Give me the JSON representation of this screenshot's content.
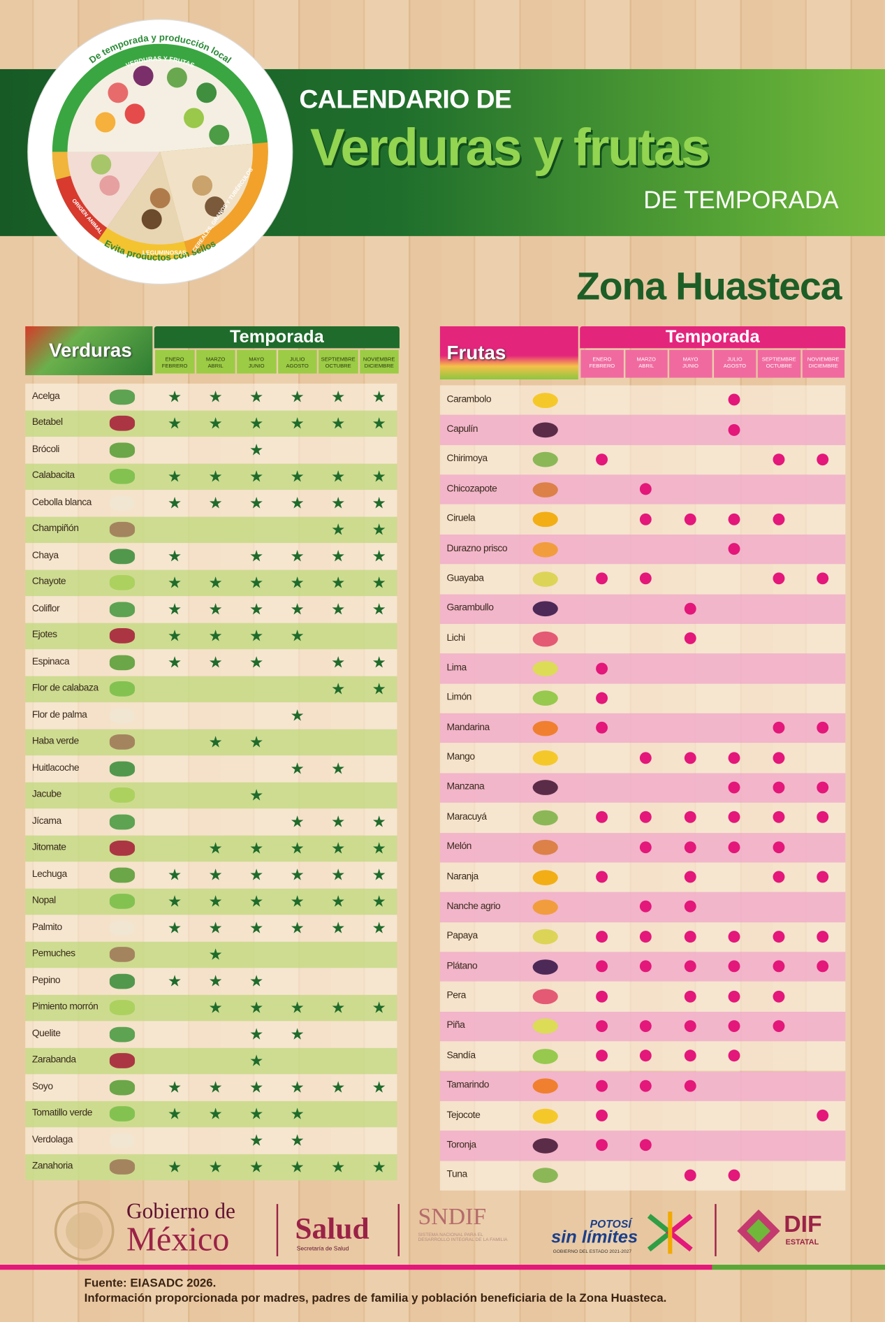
{
  "header": {
    "line1": "CALENDARIO DE",
    "line2": "Verduras y frutas",
    "line3": "DE TEMPORADA"
  },
  "plate": {
    "arc_top": "De temporada y producción local",
    "group1": "VERDURAS Y FRUTAS",
    "group2": "CEREALES, GRANOS Y TUBÉRCULOS",
    "group3": "LEGUMINOSAS",
    "group4": "ORIGEN ANIMAL",
    "arc_bottom": "Evita productos con sellos"
  },
  "zone": "Zona Huasteca",
  "verduras": {
    "title": "Verduras",
    "season_title": "Temporada",
    "columns": [
      [
        "ENERO",
        "FEBRERO"
      ],
      [
        "MARZO",
        "ABRIL"
      ],
      [
        "MAYO",
        "JUNIO"
      ],
      [
        "JULIO",
        "AGOSTO"
      ],
      [
        "SEPTIEMBRE",
        "OCTUBRE"
      ],
      [
        "NOVIEMBRE",
        "DICIEMBRE"
      ]
    ],
    "rows": [
      {
        "name": "Acelga",
        "season": [
          true,
          true,
          true,
          true,
          true,
          true
        ]
      },
      {
        "name": "Betabel",
        "season": [
          true,
          true,
          true,
          true,
          true,
          true
        ]
      },
      {
        "name": "Brócoli",
        "season": [
          false,
          false,
          true,
          false,
          false,
          false
        ]
      },
      {
        "name": "Calabacita",
        "season": [
          true,
          true,
          true,
          true,
          true,
          true
        ]
      },
      {
        "name": "Cebolla blanca",
        "season": [
          true,
          true,
          true,
          true,
          true,
          true
        ]
      },
      {
        "name": "Champiñón",
        "season": [
          false,
          false,
          false,
          false,
          true,
          true
        ]
      },
      {
        "name": "Chaya",
        "season": [
          true,
          false,
          true,
          true,
          true,
          true
        ]
      },
      {
        "name": "Chayote",
        "season": [
          true,
          true,
          true,
          true,
          true,
          true
        ]
      },
      {
        "name": "Coliflor",
        "season": [
          true,
          true,
          true,
          true,
          true,
          true
        ]
      },
      {
        "name": "Ejotes",
        "season": [
          true,
          true,
          true,
          true,
          false,
          false
        ]
      },
      {
        "name": "Espinaca",
        "season": [
          true,
          true,
          true,
          false,
          true,
          true
        ]
      },
      {
        "name": "Flor de calabaza",
        "season": [
          false,
          false,
          false,
          false,
          true,
          true
        ]
      },
      {
        "name": "Flor de palma",
        "season": [
          false,
          false,
          false,
          true,
          false,
          false
        ]
      },
      {
        "name": "Haba verde",
        "season": [
          false,
          true,
          true,
          false,
          false,
          false
        ]
      },
      {
        "name": "Huitlacoche",
        "season": [
          false,
          false,
          false,
          true,
          true,
          false
        ]
      },
      {
        "name": "Jacube",
        "season": [
          false,
          false,
          true,
          false,
          false,
          false
        ]
      },
      {
        "name": "Jícama",
        "season": [
          false,
          false,
          false,
          true,
          true,
          true
        ]
      },
      {
        "name": "Jitomate",
        "season": [
          false,
          true,
          true,
          true,
          true,
          true
        ]
      },
      {
        "name": "Lechuga",
        "season": [
          true,
          true,
          true,
          true,
          true,
          true
        ]
      },
      {
        "name": "Nopal",
        "season": [
          true,
          true,
          true,
          true,
          true,
          true
        ]
      },
      {
        "name": "Palmito",
        "season": [
          true,
          true,
          true,
          true,
          true,
          true
        ]
      },
      {
        "name": "Pemuches",
        "season": [
          false,
          true,
          false,
          false,
          false,
          false
        ]
      },
      {
        "name": "Pepino",
        "season": [
          true,
          true,
          true,
          false,
          false,
          false
        ]
      },
      {
        "name": "Pimiento morrón",
        "season": [
          false,
          true,
          true,
          true,
          true,
          true
        ]
      },
      {
        "name": "Quelite",
        "season": [
          false,
          false,
          true,
          true,
          false,
          false
        ]
      },
      {
        "name": "Zarabanda",
        "season": [
          false,
          false,
          true,
          false,
          false,
          false
        ]
      },
      {
        "name": "Soyo",
        "season": [
          true,
          true,
          true,
          true,
          true,
          true
        ]
      },
      {
        "name": "Tomatillo verde",
        "season": [
          true,
          true,
          true,
          true,
          false,
          false
        ]
      },
      {
        "name": "Verdolaga",
        "season": [
          false,
          false,
          true,
          true,
          false,
          false
        ]
      },
      {
        "name": "Zanahoria",
        "season": [
          true,
          true,
          true,
          true,
          true,
          true
        ]
      }
    ]
  },
  "frutas": {
    "title": "Frutas",
    "season_title": "Temporada",
    "columns": [
      [
        "ENERO",
        "FEBRERO"
      ],
      [
        "MARZO",
        "ABRIL"
      ],
      [
        "MAYO",
        "JUNIO"
      ],
      [
        "JULIO",
        "AGOSTO"
      ],
      [
        "SEPTIEMBRE",
        "OCTUBRE"
      ],
      [
        "NOVIEMBRE",
        "DICIEMBRE"
      ]
    ],
    "rows": [
      {
        "name": "Carambolo",
        "season": [
          false,
          false,
          false,
          true,
          false,
          false
        ]
      },
      {
        "name": "Capulín",
        "season": [
          false,
          false,
          false,
          true,
          false,
          false
        ]
      },
      {
        "name": "Chirimoya",
        "season": [
          true,
          false,
          false,
          false,
          true,
          true
        ]
      },
      {
        "name": "Chicozapote",
        "season": [
          false,
          true,
          false,
          false,
          false,
          false
        ]
      },
      {
        "name": "Ciruela",
        "season": [
          false,
          true,
          true,
          true,
          true,
          false
        ]
      },
      {
        "name": "Durazno prisco",
        "season": [
          false,
          false,
          false,
          true,
          false,
          false
        ]
      },
      {
        "name": "Guayaba",
        "season": [
          true,
          true,
          false,
          false,
          true,
          true
        ]
      },
      {
        "name": "Garambullo",
        "season": [
          false,
          false,
          true,
          false,
          false,
          false
        ]
      },
      {
        "name": "Lichi",
        "season": [
          false,
          false,
          true,
          false,
          false,
          false
        ]
      },
      {
        "name": "Lima",
        "season": [
          true,
          false,
          false,
          false,
          false,
          false
        ]
      },
      {
        "name": "Limón",
        "season": [
          true,
          false,
          false,
          false,
          false,
          false
        ]
      },
      {
        "name": "Mandarina",
        "season": [
          true,
          false,
          false,
          false,
          true,
          true
        ]
      },
      {
        "name": "Mango",
        "season": [
          false,
          true,
          true,
          true,
          true,
          false
        ]
      },
      {
        "name": "Manzana",
        "season": [
          false,
          false,
          false,
          true,
          true,
          true
        ]
      },
      {
        "name": "Maracuyá",
        "season": [
          true,
          true,
          true,
          true,
          true,
          true
        ]
      },
      {
        "name": "Melón",
        "season": [
          false,
          true,
          true,
          true,
          true,
          false
        ]
      },
      {
        "name": "Naranja",
        "season": [
          true,
          false,
          true,
          false,
          true,
          true
        ]
      },
      {
        "name": "Nanche agrio",
        "season": [
          false,
          true,
          true,
          false,
          false,
          false
        ]
      },
      {
        "name": "Papaya",
        "season": [
          true,
          true,
          true,
          true,
          true,
          true
        ]
      },
      {
        "name": "Plátano",
        "season": [
          true,
          true,
          true,
          true,
          true,
          true
        ]
      },
      {
        "name": "Pera",
        "season": [
          true,
          false,
          true,
          true,
          true,
          false
        ]
      },
      {
        "name": "Piña",
        "season": [
          true,
          true,
          true,
          true,
          true,
          false
        ]
      },
      {
        "name": "Sandía",
        "season": [
          true,
          true,
          true,
          true,
          false,
          false
        ]
      },
      {
        "name": "Tamarindo",
        "season": [
          true,
          true,
          true,
          false,
          false,
          false
        ]
      },
      {
        "name": "Tejocote",
        "season": [
          true,
          false,
          false,
          false,
          false,
          true
        ]
      },
      {
        "name": "Toronja",
        "season": [
          true,
          true,
          false,
          false,
          false,
          false
        ]
      },
      {
        "name": "Tuna",
        "season": [
          false,
          false,
          true,
          true,
          false,
          false
        ]
      }
    ]
  },
  "footer": {
    "gob_line1": "Gobierno de",
    "gob_line2": "México",
    "salud": "Salud",
    "salud_sub": "Secretaría de Salud",
    "sndif": "SNDIF",
    "sndif_sub": "SISTEMA NACIONAL PARA EL DESARROLLO INTEGRAL DE LA FAMILIA",
    "potosi_1": "POTOSÍ",
    "potosi_2": "sin límites",
    "potosi_sub": "GOBIERNO DEL ESTADO 2021-2027",
    "dif": "DIF",
    "dif_sub": "ESTATAL",
    "source": "Fuente: EIASADC 2026.",
    "note": "Información proporcionada por madres, padres de familia y población beneficiaria de la Zona Huasteca."
  }
}
